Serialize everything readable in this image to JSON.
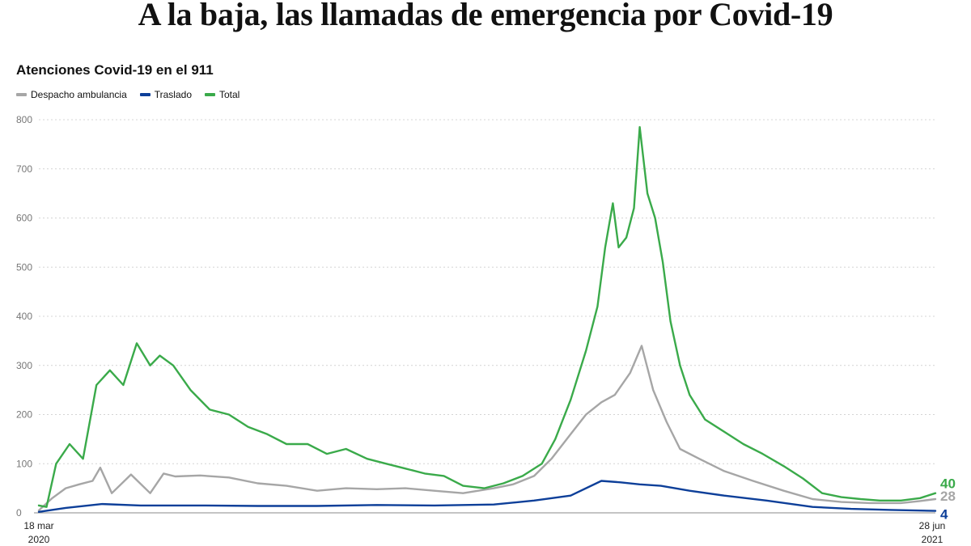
{
  "headline": "A la baja, las llamadas de emergencia por Covid-19",
  "chart_data": {
    "type": "line",
    "title": "Atenciones Covid-19 en el 911",
    "xlabel": "",
    "ylabel": "",
    "x_start": "2020-03-18",
    "x_end": "2021-06-28",
    "x_labels": [
      {
        "date": "2020-03-18",
        "line1": "18 mar",
        "line2": "2020"
      },
      {
        "date": "2021-06-28",
        "line1": "28 jun",
        "line2": "2021"
      }
    ],
    "ylim": [
      0,
      800
    ],
    "yticks": [
      0,
      100,
      200,
      300,
      400,
      500,
      600,
      700,
      800
    ],
    "grid": true,
    "legend_position": "top-left",
    "series": [
      {
        "name": "Despacho ambulancia",
        "color": "#a6a6a6",
        "end_label": "28",
        "points": [
          [
            "2020-03-18",
            5
          ],
          [
            "2020-03-25",
            30
          ],
          [
            "2020-04-01",
            50
          ],
          [
            "2020-04-08",
            58
          ],
          [
            "2020-04-15",
            65
          ],
          [
            "2020-04-19",
            92
          ],
          [
            "2020-04-25",
            40
          ],
          [
            "2020-05-05",
            78
          ],
          [
            "2020-05-15",
            40
          ],
          [
            "2020-05-22",
            80
          ],
          [
            "2020-05-28",
            74
          ],
          [
            "2020-06-10",
            76
          ],
          [
            "2020-06-25",
            72
          ],
          [
            "2020-07-10",
            60
          ],
          [
            "2020-07-25",
            55
          ],
          [
            "2020-08-10",
            45
          ],
          [
            "2020-08-25",
            50
          ],
          [
            "2020-09-10",
            48
          ],
          [
            "2020-09-25",
            50
          ],
          [
            "2020-10-10",
            45
          ],
          [
            "2020-10-25",
            40
          ],
          [
            "2020-11-10",
            50
          ],
          [
            "2020-11-20",
            58
          ],
          [
            "2020-12-01",
            75
          ],
          [
            "2020-12-10",
            110
          ],
          [
            "2020-12-20",
            160
          ],
          [
            "2020-12-28",
            200
          ],
          [
            "2021-01-05",
            225
          ],
          [
            "2021-01-12",
            240
          ],
          [
            "2021-01-20",
            285
          ],
          [
            "2021-01-26",
            340
          ],
          [
            "2021-02-01",
            250
          ],
          [
            "2021-02-08",
            185
          ],
          [
            "2021-02-15",
            130
          ],
          [
            "2021-02-25",
            110
          ],
          [
            "2021-03-10",
            85
          ],
          [
            "2021-03-25",
            65
          ],
          [
            "2021-04-10",
            45
          ],
          [
            "2021-04-25",
            28
          ],
          [
            "2021-05-10",
            22
          ],
          [
            "2021-05-25",
            20
          ],
          [
            "2021-06-10",
            20
          ],
          [
            "2021-06-20",
            24
          ],
          [
            "2021-06-28",
            28
          ]
        ]
      },
      {
        "name": "Traslado",
        "color": "#0d3f99",
        "end_label": "4",
        "points": [
          [
            "2020-03-18",
            2
          ],
          [
            "2020-04-01",
            10
          ],
          [
            "2020-04-20",
            18
          ],
          [
            "2020-05-10",
            15
          ],
          [
            "2020-06-10",
            15
          ],
          [
            "2020-07-10",
            14
          ],
          [
            "2020-08-10",
            14
          ],
          [
            "2020-09-10",
            16
          ],
          [
            "2020-10-10",
            15
          ],
          [
            "2020-11-10",
            17
          ],
          [
            "2020-12-01",
            25
          ],
          [
            "2020-12-20",
            35
          ],
          [
            "2021-01-05",
            65
          ],
          [
            "2021-01-15",
            62
          ],
          [
            "2021-01-25",
            58
          ],
          [
            "2021-02-05",
            55
          ],
          [
            "2021-02-20",
            45
          ],
          [
            "2021-03-10",
            35
          ],
          [
            "2021-04-01",
            25
          ],
          [
            "2021-04-25",
            12
          ],
          [
            "2021-05-15",
            8
          ],
          [
            "2021-06-05",
            6
          ],
          [
            "2021-06-28",
            4
          ]
        ]
      },
      {
        "name": "Total",
        "color": "#3aaa4a",
        "end_label": "40",
        "points": [
          [
            "2020-03-18",
            15
          ],
          [
            "2020-03-22",
            12
          ],
          [
            "2020-03-27",
            100
          ],
          [
            "2020-04-03",
            140
          ],
          [
            "2020-04-10",
            110
          ],
          [
            "2020-04-17",
            260
          ],
          [
            "2020-04-24",
            290
          ],
          [
            "2020-05-01",
            260
          ],
          [
            "2020-05-08",
            345
          ],
          [
            "2020-05-15",
            300
          ],
          [
            "2020-05-20",
            320
          ],
          [
            "2020-05-27",
            300
          ],
          [
            "2020-06-05",
            250
          ],
          [
            "2020-06-15",
            210
          ],
          [
            "2020-06-25",
            200
          ],
          [
            "2020-07-05",
            175
          ],
          [
            "2020-07-15",
            160
          ],
          [
            "2020-07-25",
            140
          ],
          [
            "2020-08-05",
            140
          ],
          [
            "2020-08-15",
            120
          ],
          [
            "2020-08-25",
            130
          ],
          [
            "2020-09-05",
            110
          ],
          [
            "2020-09-15",
            100
          ],
          [
            "2020-09-25",
            90
          ],
          [
            "2020-10-05",
            80
          ],
          [
            "2020-10-15",
            75
          ],
          [
            "2020-10-25",
            55
          ],
          [
            "2020-11-05",
            50
          ],
          [
            "2020-11-15",
            60
          ],
          [
            "2020-11-25",
            75
          ],
          [
            "2020-12-05",
            100
          ],
          [
            "2020-12-12",
            150
          ],
          [
            "2020-12-20",
            230
          ],
          [
            "2020-12-28",
            330
          ],
          [
            "2021-01-03",
            420
          ],
          [
            "2021-01-07",
            540
          ],
          [
            "2021-01-11",
            630
          ],
          [
            "2021-01-14",
            540
          ],
          [
            "2021-01-18",
            560
          ],
          [
            "2021-01-22",
            620
          ],
          [
            "2021-01-25",
            785
          ],
          [
            "2021-01-29",
            650
          ],
          [
            "2021-02-02",
            600
          ],
          [
            "2021-02-06",
            510
          ],
          [
            "2021-02-10",
            390
          ],
          [
            "2021-02-15",
            300
          ],
          [
            "2021-02-20",
            240
          ],
          [
            "2021-02-28",
            190
          ],
          [
            "2021-03-10",
            165
          ],
          [
            "2021-03-20",
            140
          ],
          [
            "2021-03-30",
            120
          ],
          [
            "2021-04-10",
            95
          ],
          [
            "2021-04-20",
            70
          ],
          [
            "2021-04-30",
            40
          ],
          [
            "2021-05-10",
            32
          ],
          [
            "2021-05-20",
            28
          ],
          [
            "2021-05-30",
            25
          ],
          [
            "2021-06-10",
            25
          ],
          [
            "2021-06-20",
            30
          ],
          [
            "2021-06-28",
            40
          ]
        ]
      }
    ]
  }
}
